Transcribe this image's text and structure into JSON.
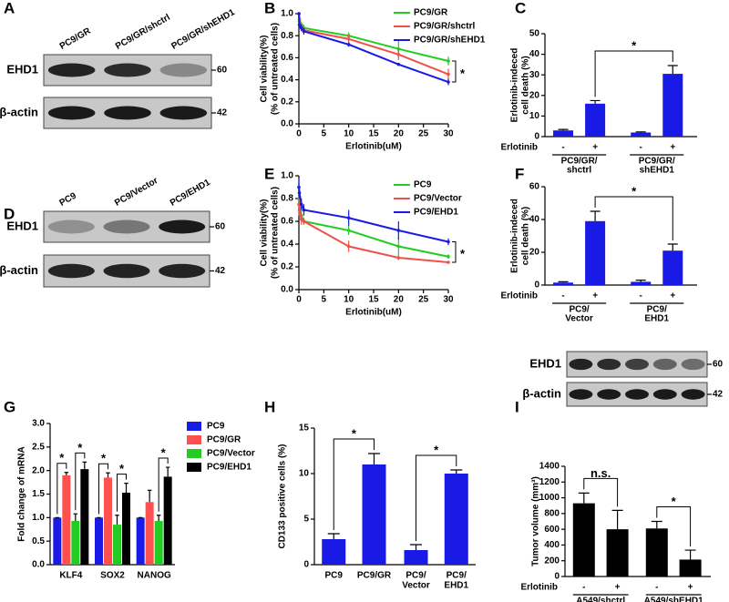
{
  "panel_labels": [
    "A",
    "B",
    "C",
    "D",
    "E",
    "F",
    "G",
    "H",
    "I"
  ],
  "blots": [
    {
      "lanes": [
        "PC9/GR",
        "PC9/GR/shctrl",
        "PC9/GR/shEHD1"
      ],
      "rows": [
        "EHD1",
        "β-actin"
      ],
      "markers": [
        60,
        42
      ]
    },
    {
      "lanes": [
        "PC9",
        "PC9/Vector",
        "PC9/EHD1"
      ],
      "rows": [
        "EHD1",
        "β-actin"
      ],
      "markers": [
        60,
        42
      ]
    },
    {
      "rows": [
        "EHD1",
        "β-actin"
      ],
      "markers": [
        60,
        42
      ]
    }
  ],
  "chart_data": [
    {
      "type": "line",
      "x": [
        0,
        0.1,
        0.5,
        1,
        10,
        20,
        30
      ],
      "series": [
        {
          "name": "PC9/GR",
          "color": "#22cc22",
          "values": [
            1.0,
            0.95,
            0.9,
            0.87,
            0.8,
            0.68,
            0.57
          ],
          "errors": [
            0,
            0.02,
            0.02,
            0.03,
            0.03,
            0.08,
            0.04
          ]
        },
        {
          "name": "PC9/GR/shctrl",
          "color": "#f0504a",
          "values": [
            1.0,
            0.93,
            0.88,
            0.85,
            0.77,
            0.63,
            0.45
          ],
          "errors": [
            0,
            0.02,
            0.02,
            0.03,
            0.04,
            0.05,
            0.05
          ]
        },
        {
          "name": "PC9/GR/shEHD1",
          "color": "#1a1ae6",
          "values": [
            1.0,
            0.9,
            0.87,
            0.84,
            0.72,
            0.54,
            0.38
          ],
          "errors": [
            0,
            0.03,
            0.03,
            0.03,
            0.02,
            0.01,
            0.03
          ]
        }
      ],
      "xlim": [
        0,
        30
      ],
      "xticks": [
        0,
        5,
        10,
        15,
        20,
        25,
        30
      ],
      "ylim": [
        0,
        1
      ],
      "yticks": [
        {
          "value": 0,
          "label": "0.0"
        },
        0.2,
        0.4,
        0.6,
        0.8,
        {
          "value": 1,
          "label": "1.0"
        }
      ],
      "xlabel": "Erlotinib(uM)",
      "ylabel": [
        "Cell viability(%)",
        "(% of untreated cells)"
      ],
      "annotations": [
        "*"
      ],
      "legend": "upper right"
    },
    {
      "type": "bar",
      "categories": [
        "-",
        "+",
        "-",
        "+"
      ],
      "values": [
        3,
        16,
        2,
        30.5
      ],
      "errors": [
        0.5,
        1.5,
        0.3,
        4
      ],
      "color": "#1a1ae6",
      "ylim": [
        0,
        50
      ],
      "yticks": [
        0,
        10,
        20,
        30,
        40,
        50
      ],
      "ylabel": [
        "Erlotinib-indeced",
        "cell death (%)"
      ],
      "treatment_label": "Erlotinib",
      "groups": [
        [
          "PC9/GR/",
          "shctrl"
        ],
        [
          "PC9/GR/",
          "shEHD1"
        ]
      ],
      "annotations": [
        "*"
      ]
    },
    {
      "type": "line",
      "x": [
        0,
        0.1,
        0.5,
        1,
        10,
        20,
        30
      ],
      "series": [
        {
          "name": "PC9",
          "color": "#22cc22",
          "values": [
            0.8,
            0.75,
            0.65,
            0.6,
            0.52,
            0.38,
            0.29
          ],
          "errors": [
            0.1,
            0.05,
            0.05,
            0.03,
            0.04,
            0.08,
            0.02
          ]
        },
        {
          "name": "PC9/Vector",
          "color": "#f0504a",
          "values": [
            0.75,
            0.7,
            0.62,
            0.6,
            0.38,
            0.28,
            0.24
          ],
          "errors": [
            0.1,
            0.05,
            0.05,
            0.03,
            0.05,
            0.02,
            0.01
          ]
        },
        {
          "name": "PC9/EHD1",
          "color": "#1a1ae6",
          "values": [
            0.9,
            0.85,
            0.75,
            0.7,
            0.63,
            0.52,
            0.42
          ],
          "errors": [
            0.08,
            0.05,
            0.05,
            0.05,
            0.07,
            0.08,
            0.03
          ]
        }
      ],
      "xlim": [
        0,
        30
      ],
      "xticks": [
        0,
        5,
        10,
        15,
        20,
        25,
        30
      ],
      "ylim": [
        0,
        1
      ],
      "yticks": [
        {
          "value": 0,
          "label": "0.0"
        },
        0.2,
        0.4,
        0.6,
        0.8,
        {
          "value": 1,
          "label": "1.0"
        }
      ],
      "xlabel": "Erlotinib(uM)",
      "ylabel": [
        "Cell viability(%)",
        "(% of untreated cells)"
      ],
      "annotations": [
        "*"
      ],
      "legend": "upper right"
    },
    {
      "type": "bar",
      "categories": [
        "-",
        "+",
        "-",
        "+"
      ],
      "values": [
        1.5,
        39,
        2,
        21
      ],
      "errors": [
        0.5,
        6,
        1,
        4
      ],
      "color": "#1a1ae6",
      "ylim": [
        0,
        60
      ],
      "yticks": [
        0,
        20,
        40,
        60
      ],
      "ylabel": [
        "Erlotinib-indeced",
        "cell death (%)"
      ],
      "treatment_label": "Erlotinib",
      "groups": [
        [
          "PC9/",
          "Vector"
        ],
        [
          "PC9/",
          "EHD1"
        ]
      ],
      "annotations": [
        "*"
      ]
    },
    {
      "type": "bar",
      "categories": [
        "KLF4",
        "SOX2",
        "NANOG"
      ],
      "series": [
        {
          "name": "PC9",
          "color": "#1a1ae6",
          "values": [
            1,
            1,
            1
          ],
          "errors": [
            0,
            0,
            0
          ]
        },
        {
          "name": "PC9/GR",
          "color": "#ff5050",
          "values": [
            1.9,
            1.85,
            1.33
          ],
          "errors": [
            0.06,
            0.1,
            0.25
          ]
        },
        {
          "name": "PC9/Vector",
          "color": "#22cc22",
          "values": [
            0.93,
            0.85,
            0.93
          ],
          "errors": [
            0.15,
            0.2,
            0.12
          ]
        },
        {
          "name": "PC9/EHD1",
          "color": "#000000",
          "values": [
            2.03,
            1.53,
            1.87
          ],
          "errors": [
            0.15,
            0.2,
            0.2
          ]
        }
      ],
      "ylim": [
        0,
        3
      ],
      "yticks": [
        {
          "value": 0,
          "label": "0.0"
        },
        0.5,
        {
          "value": 1,
          "label": "1.0"
        },
        1.5,
        {
          "value": 2,
          "label": "2.0"
        },
        2.5,
        {
          "value": 3,
          "label": "3.0"
        }
      ],
      "ylabel": [
        "Fold change of mRNA"
      ],
      "annotations": [
        "*",
        "*",
        "*",
        "*",
        "*"
      ],
      "legend": "right"
    },
    {
      "type": "bar",
      "categories": [
        [
          "PC9"
        ],
        [
          "PC9/GR"
        ],
        [
          "PC9/",
          "Vector"
        ],
        [
          "PC9/",
          "EHD1"
        ]
      ],
      "values": [
        2.8,
        11,
        1.6,
        10
      ],
      "errors": [
        0.6,
        1.2,
        0.6,
        0.4
      ],
      "color": "#1a1ae6",
      "ylim": [
        0,
        15
      ],
      "yticks": [
        0,
        5,
        10,
        15
      ],
      "ylabel": [
        "CD133 positive cells (%)"
      ],
      "annotations": [
        "*",
        "*"
      ]
    },
    {
      "type": "bar",
      "categories": [
        "-",
        "+",
        "-",
        "+"
      ],
      "values": [
        930,
        600,
        610,
        215
      ],
      "errors": [
        130,
        240,
        90,
        120
      ],
      "color": "#000000",
      "ylim": [
        0,
        1400
      ],
      "yticks": [
        0,
        200,
        400,
        600,
        800,
        1000,
        1200,
        1400
      ],
      "ylabel": [
        "Tumor volume (mm³)"
      ],
      "treatment_label": "Erlotinib",
      "groups": [
        [
          "A549/shctrl"
        ],
        [
          "A549/shEHD1"
        ]
      ],
      "annotations": [
        "n.s.",
        "*"
      ]
    }
  ]
}
